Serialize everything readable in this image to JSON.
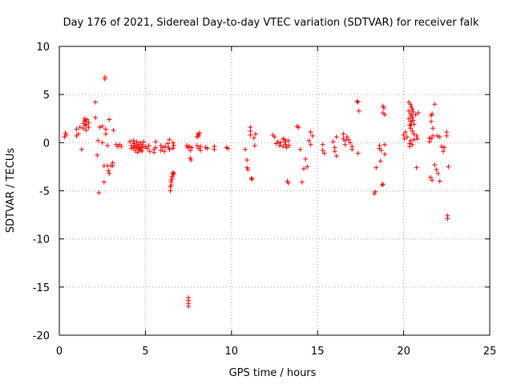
{
  "chart_data": {
    "type": "scatter",
    "title": "Day 176 of 2021, Sidereal Day-to-day VTEC variation (SDTVAR) for receiver falk",
    "xlabel": "GPS time / hours",
    "ylabel": "SDTVAR / TECUs",
    "xlim": [
      0,
      25
    ],
    "ylim": [
      -20,
      10
    ],
    "xticks": [
      "0",
      "5",
      "10",
      "15",
      "20",
      "25"
    ],
    "yticks": [
      "10",
      "5",
      "0",
      "-5",
      "-10",
      "-15",
      "-20"
    ],
    "grid": true,
    "marker": "+",
    "color": "#ff0000",
    "series": [
      {
        "name": "SDTVAR",
        "points": [
          [
            0.3,
            0.6
          ],
          [
            0.35,
            1.0
          ],
          [
            0.4,
            0.8
          ],
          [
            1.0,
            0.7
          ],
          [
            1.0,
            1.4
          ],
          [
            1.1,
            0.9
          ],
          [
            1.2,
            1.6
          ],
          [
            1.3,
            -0.7
          ],
          [
            1.4,
            2.0
          ],
          [
            1.4,
            1.5
          ],
          [
            1.45,
            2.5
          ],
          [
            1.5,
            2.2
          ],
          [
            1.5,
            1.8
          ],
          [
            1.55,
            1.3
          ],
          [
            1.6,
            2.4
          ],
          [
            1.6,
            1.9
          ],
          [
            1.7,
            2.1
          ],
          [
            1.7,
            1.6
          ],
          [
            1.5,
            2.3
          ],
          [
            2.1,
            4.2
          ],
          [
            2.1,
            2.6
          ],
          [
            2.2,
            -1.3
          ],
          [
            2.25,
            0.2
          ],
          [
            2.3,
            -5.2
          ],
          [
            2.35,
            1.6
          ],
          [
            2.5,
            1.7
          ],
          [
            2.5,
            0.0
          ],
          [
            2.6,
            -2.4
          ],
          [
            2.6,
            -4.1
          ],
          [
            2.65,
            6.8
          ],
          [
            2.65,
            6.6
          ],
          [
            2.7,
            1.4
          ],
          [
            2.7,
            0.9
          ],
          [
            2.8,
            -2.4
          ],
          [
            2.8,
            -0.3
          ],
          [
            2.85,
            -2.9
          ],
          [
            2.9,
            -3.2
          ],
          [
            2.9,
            2.4
          ],
          [
            3.0,
            -2.4
          ],
          [
            3.1,
            -2.1
          ],
          [
            3.1,
            -2.4
          ],
          [
            3.15,
            1.3
          ],
          [
            3.3,
            -0.2
          ],
          [
            3.4,
            -0.4
          ],
          [
            3.5,
            -0.2
          ],
          [
            3.6,
            -0.4
          ],
          [
            4.1,
            0.1
          ],
          [
            4.2,
            -0.3
          ],
          [
            4.2,
            -0.6
          ],
          [
            4.3,
            0.2
          ],
          [
            4.3,
            -0.5
          ],
          [
            4.35,
            -0.1
          ],
          [
            4.4,
            -0.4
          ],
          [
            4.4,
            -0.8
          ],
          [
            4.5,
            0.1
          ],
          [
            4.5,
            -0.3
          ],
          [
            4.5,
            -0.6
          ],
          [
            4.55,
            -1.0
          ],
          [
            4.6,
            -0.2
          ],
          [
            4.6,
            -0.5
          ],
          [
            4.65,
            -0.8
          ],
          [
            4.7,
            0.0
          ],
          [
            4.7,
            -0.4
          ],
          [
            4.75,
            -0.7
          ],
          [
            4.8,
            -0.2
          ],
          [
            4.8,
            -0.9
          ],
          [
            4.85,
            -0.5
          ],
          [
            4.9,
            0.1
          ],
          [
            5.0,
            -0.4
          ],
          [
            5.1,
            -0.6
          ],
          [
            5.2,
            -0.3
          ],
          [
            5.25,
            -0.9
          ],
          [
            5.5,
            -0.7
          ],
          [
            5.5,
            -1.0
          ],
          [
            5.6,
            0.1
          ],
          [
            5.6,
            -0.5
          ],
          [
            5.9,
            -0.3
          ],
          [
            5.9,
            -0.8
          ],
          [
            6.0,
            -0.5
          ],
          [
            6.1,
            -0.9
          ],
          [
            6.15,
            -0.4
          ],
          [
            6.3,
            -0.1
          ],
          [
            6.35,
            -0.5
          ],
          [
            6.4,
            -0.7
          ],
          [
            6.4,
            0.3
          ],
          [
            6.45,
            -5.0
          ],
          [
            6.45,
            -4.6
          ],
          [
            6.5,
            -4.4
          ],
          [
            6.5,
            -4.1
          ],
          [
            6.5,
            -3.9
          ],
          [
            6.55,
            -3.7
          ],
          [
            6.55,
            -3.5
          ],
          [
            6.6,
            -3.3
          ],
          [
            6.6,
            -3.1
          ],
          [
            6.65,
            -3.2
          ],
          [
            6.6,
            0.0
          ],
          [
            6.65,
            -0.3
          ],
          [
            6.6,
            -0.6
          ],
          [
            7.4,
            -0.3
          ],
          [
            7.45,
            -0.5
          ],
          [
            7.5,
            -16.1
          ],
          [
            7.5,
            -16.4
          ],
          [
            7.5,
            -16.7
          ],
          [
            7.5,
            -17.0
          ],
          [
            7.55,
            -0.4
          ],
          [
            7.6,
            -1.6
          ],
          [
            7.6,
            -0.8
          ],
          [
            7.65,
            -1.8
          ],
          [
            7.7,
            -0.5
          ],
          [
            8.0,
            0.6
          ],
          [
            8.0,
            -0.3
          ],
          [
            8.05,
            0.9
          ],
          [
            8.1,
            0.7
          ],
          [
            8.1,
            -0.6
          ],
          [
            8.15,
            1.0
          ],
          [
            8.2,
            -0.4
          ],
          [
            8.2,
            -0.8
          ],
          [
            8.5,
            -0.5
          ],
          [
            8.6,
            -0.6
          ],
          [
            9.0,
            -0.4
          ],
          [
            9.0,
            -0.7
          ],
          [
            9.7,
            -0.5
          ],
          [
            9.8,
            -0.6
          ],
          [
            10.8,
            -0.7
          ],
          [
            10.9,
            -1.8
          ],
          [
            10.9,
            -2.6
          ],
          [
            10.95,
            -2.8
          ],
          [
            11.1,
            1.6
          ],
          [
            11.1,
            1.2
          ],
          [
            11.1,
            0.8
          ],
          [
            11.15,
            -3.7
          ],
          [
            11.2,
            -3.8
          ],
          [
            11.3,
            0.5
          ],
          [
            11.35,
            -0.3
          ],
          [
            11.4,
            0.9
          ],
          [
            12.4,
            0.8
          ],
          [
            12.5,
            0.6
          ],
          [
            12.6,
            -0.1
          ],
          [
            12.7,
            0.1
          ],
          [
            12.8,
            -0.3
          ],
          [
            12.85,
            0.0
          ],
          [
            13.0,
            0.4
          ],
          [
            13.0,
            -0.4
          ],
          [
            13.1,
            0.1
          ],
          [
            13.1,
            0.3
          ],
          [
            13.15,
            -0.2
          ],
          [
            13.2,
            -0.5
          ],
          [
            13.25,
            -4.0
          ],
          [
            13.3,
            -4.2
          ],
          [
            13.35,
            -0.3
          ],
          [
            13.3,
            0.2
          ],
          [
            13.8,
            1.7
          ],
          [
            13.9,
            1.6
          ],
          [
            14.0,
            -0.7
          ],
          [
            14.1,
            -4.1
          ],
          [
            14.2,
            -2.7
          ],
          [
            14.3,
            -1.7
          ],
          [
            14.4,
            -2.5
          ],
          [
            14.5,
            0.2
          ],
          [
            14.6,
            1.1
          ],
          [
            14.6,
            -0.2
          ],
          [
            14.7,
            0.7
          ],
          [
            15.3,
            -0.8
          ],
          [
            15.3,
            -0.2
          ],
          [
            15.4,
            -1.1
          ],
          [
            15.9,
            0.1
          ],
          [
            16.0,
            -0.5
          ],
          [
            16.0,
            -0.9
          ],
          [
            16.1,
            0.6
          ],
          [
            16.1,
            -1.4
          ],
          [
            16.5,
            0.9
          ],
          [
            16.5,
            0.4
          ],
          [
            16.6,
            0.2
          ],
          [
            16.6,
            -0.2
          ],
          [
            16.7,
            0.6
          ],
          [
            16.8,
            0.3
          ],
          [
            16.9,
            0.0
          ],
          [
            17.0,
            -0.4
          ],
          [
            17.0,
            -0.7
          ],
          [
            17.3,
            4.3
          ],
          [
            17.35,
            4.2
          ],
          [
            17.4,
            3.3
          ],
          [
            17.35,
            -1.1
          ],
          [
            18.3,
            -5.3
          ],
          [
            18.35,
            -5.1
          ],
          [
            18.4,
            -2.6
          ],
          [
            18.6,
            -0.6
          ],
          [
            18.6,
            -0.3
          ],
          [
            18.65,
            -1.9
          ],
          [
            18.7,
            -0.8
          ],
          [
            18.75,
            -4.4
          ],
          [
            18.8,
            -4.3
          ],
          [
            18.8,
            3.8
          ],
          [
            18.8,
            3.1
          ],
          [
            18.85,
            3.6
          ],
          [
            18.9,
            2.9
          ],
          [
            18.9,
            -1.2
          ],
          [
            18.9,
            -0.2
          ],
          [
            20.0,
            0.8
          ],
          [
            20.05,
            0.4
          ],
          [
            20.1,
            1.1
          ],
          [
            20.2,
            0.6
          ],
          [
            20.3,
            4.2
          ],
          [
            20.3,
            3.3
          ],
          [
            20.3,
            2.5
          ],
          [
            20.35,
            1.8
          ],
          [
            20.35,
            -0.1
          ],
          [
            20.35,
            -0.4
          ],
          [
            20.4,
            4.0
          ],
          [
            20.4,
            3.0
          ],
          [
            20.4,
            2.2
          ],
          [
            20.4,
            1.5
          ],
          [
            20.4,
            0.2
          ],
          [
            20.45,
            3.7
          ],
          [
            20.45,
            2.8
          ],
          [
            20.45,
            1.9
          ],
          [
            20.5,
            3.5
          ],
          [
            20.5,
            2.6
          ],
          [
            20.5,
            1.2
          ],
          [
            20.5,
            -0.2
          ],
          [
            20.55,
            3.2
          ],
          [
            20.55,
            2.3
          ],
          [
            20.6,
            1.9
          ],
          [
            20.6,
            0.9
          ],
          [
            20.6,
            0.3
          ],
          [
            20.7,
            2.9
          ],
          [
            20.75,
            0.7
          ],
          [
            20.75,
            -2.6
          ],
          [
            20.8,
            0.4
          ],
          [
            20.85,
            3.1
          ],
          [
            21.5,
            0.5
          ],
          [
            21.5,
            0.1
          ],
          [
            21.55,
            -3.6
          ],
          [
            21.6,
            2.8
          ],
          [
            21.6,
            2.2
          ],
          [
            21.6,
            0.4
          ],
          [
            21.65,
            -3.9
          ],
          [
            21.65,
            3.0
          ],
          [
            21.7,
            0.7
          ],
          [
            21.7,
            1.5
          ],
          [
            21.8,
            4.0
          ],
          [
            21.8,
            -2.3
          ],
          [
            21.9,
            -2.8
          ],
          [
            21.95,
            0.7
          ],
          [
            22.0,
            -3.2
          ],
          [
            22.1,
            -4.0
          ],
          [
            22.1,
            0.6
          ],
          [
            22.2,
            -0.4
          ],
          [
            22.3,
            -0.9
          ],
          [
            22.35,
            -0.5
          ],
          [
            22.5,
            1.1
          ],
          [
            22.5,
            0.7
          ],
          [
            22.55,
            -7.6
          ],
          [
            22.55,
            -7.9
          ],
          [
            22.6,
            -2.5
          ]
        ]
      }
    ]
  }
}
